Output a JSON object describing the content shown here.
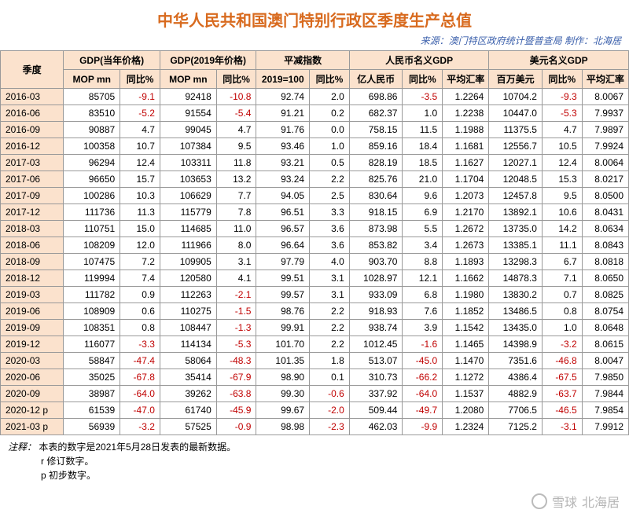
{
  "title": "中华人民共和国澳门特别行政区季度生产总值",
  "title_color": "#d86a1e",
  "subtitle": "来源：澳门特区政府统计暨普查局  制作：北海居",
  "subtitle_color": "#3a5fab",
  "watermark": {
    "brand": "雪球",
    "author": "北海居"
  },
  "header_bg": "#fbe2cd",
  "col_widths_pct": [
    9.5,
    8.5,
    6,
    8.5,
    6,
    8,
    6,
    8,
    6,
    7,
    8,
    6,
    7
  ],
  "colgroups": [
    {
      "label": "季度",
      "rowspan": 2
    },
    {
      "label": "GDP(当年价格)",
      "subs": [
        "MOP mn",
        "同比%"
      ]
    },
    {
      "label": "GDP(2019年价格)",
      "subs": [
        "MOP mn",
        "同比%"
      ]
    },
    {
      "label": "平减指数",
      "subs": [
        "2019=100",
        "同比%"
      ]
    },
    {
      "label": "人民币名义GDP",
      "subs": [
        "亿人民币",
        "同比%",
        "平均汇率"
      ]
    },
    {
      "label": "美元名义GDP",
      "subs": [
        "百万美元",
        "同比%",
        "平均汇率"
      ]
    }
  ],
  "rows": [
    {
      "period": "2016-03",
      "c": [
        85705,
        -9.1,
        92418,
        -10.8,
        "92.74",
        2.0,
        "698.86",
        -3.5,
        "1.2264",
        "10704.2",
        -9.3,
        "8.0067"
      ]
    },
    {
      "period": "2016-06",
      "c": [
        83510,
        -5.2,
        91554,
        -5.4,
        "91.21",
        0.2,
        "682.37",
        1.0,
        "1.2238",
        "10447.0",
        -5.3,
        "7.9937"
      ]
    },
    {
      "period": "2016-09",
      "c": [
        90887,
        4.7,
        99045,
        4.7,
        "91.76",
        0.0,
        "758.15",
        11.5,
        "1.1988",
        "11375.5",
        4.7,
        "7.9897"
      ]
    },
    {
      "period": "2016-12",
      "c": [
        100358,
        10.7,
        107384,
        9.5,
        "93.46",
        1.0,
        "859.16",
        18.4,
        "1.1681",
        "12556.7",
        10.5,
        "7.9924"
      ]
    },
    {
      "period": "2017-03",
      "c": [
        96294,
        12.4,
        103311,
        11.8,
        "93.21",
        0.5,
        "828.19",
        18.5,
        "1.1627",
        "12027.1",
        12.4,
        "8.0064"
      ]
    },
    {
      "period": "2017-06",
      "c": [
        96650,
        15.7,
        103653,
        13.2,
        "93.24",
        2.2,
        "825.76",
        21.0,
        "1.1704",
        "12048.5",
        15.3,
        "8.0217"
      ]
    },
    {
      "period": "2017-09",
      "c": [
        100286,
        10.3,
        106629,
        7.7,
        "94.05",
        2.5,
        "830.64",
        9.6,
        "1.2073",
        "12457.8",
        9.5,
        "8.0500"
      ]
    },
    {
      "period": "2017-12",
      "c": [
        111736,
        11.3,
        115779,
        7.8,
        "96.51",
        3.3,
        "918.15",
        6.9,
        "1.2170",
        "13892.1",
        10.6,
        "8.0431"
      ]
    },
    {
      "period": "2018-03",
      "c": [
        110751,
        15.0,
        114685,
        11.0,
        "96.57",
        3.6,
        "873.98",
        5.5,
        "1.2672",
        "13735.0",
        14.2,
        "8.0634"
      ]
    },
    {
      "period": "2018-06",
      "c": [
        108209,
        12.0,
        111966,
        8.0,
        "96.64",
        3.6,
        "853.82",
        3.4,
        "1.2673",
        "13385.1",
        11.1,
        "8.0843"
      ]
    },
    {
      "period": "2018-09",
      "c": [
        107475,
        7.2,
        109905,
        3.1,
        "97.79",
        4.0,
        "903.70",
        8.8,
        "1.1893",
        "13298.3",
        6.7,
        "8.0818"
      ]
    },
    {
      "period": "2018-12",
      "c": [
        119994,
        7.4,
        120580,
        4.1,
        "99.51",
        3.1,
        "1028.97",
        12.1,
        "1.1662",
        "14878.3",
        7.1,
        "8.0650"
      ]
    },
    {
      "period": "2019-03",
      "c": [
        111782,
        0.9,
        112263,
        -2.1,
        "99.57",
        3.1,
        "933.09",
        6.8,
        "1.1980",
        "13830.2",
        0.7,
        "8.0825"
      ]
    },
    {
      "period": "2019-06",
      "c": [
        108909,
        0.6,
        110275,
        -1.5,
        "98.76",
        2.2,
        "918.93",
        7.6,
        "1.1852",
        "13486.5",
        0.8,
        "8.0754"
      ]
    },
    {
      "period": "2019-09",
      "c": [
        108351,
        0.8,
        108447,
        -1.3,
        "99.91",
        2.2,
        "938.74",
        3.9,
        "1.1542",
        "13435.0",
        1.0,
        "8.0648"
      ]
    },
    {
      "period": "2019-12",
      "c": [
        116077,
        -3.3,
        114134,
        -5.3,
        "101.70",
        2.2,
        "1012.45",
        -1.6,
        "1.1465",
        "14398.9",
        -3.2,
        "8.0615"
      ]
    },
    {
      "period": "2020-03",
      "c": [
        58847,
        -47.4,
        58064,
        -48.3,
        "101.35",
        1.8,
        "513.07",
        -45.0,
        "1.1470",
        "7351.6",
        -46.8,
        "8.0047"
      ]
    },
    {
      "period": "2020-06",
      "c": [
        35025,
        -67.8,
        35414,
        -67.9,
        "98.90",
        0.1,
        "310.73",
        -66.2,
        "1.1272",
        "4386.4",
        -67.5,
        "7.9850"
      ]
    },
    {
      "period": "2020-09",
      "c": [
        38987,
        -64.0,
        39262,
        -63.8,
        "99.30",
        -0.6,
        "337.92",
        -64.0,
        "1.1537",
        "4882.9",
        -63.7,
        "7.9844"
      ]
    },
    {
      "period": "2020-12 p",
      "c": [
        61539,
        -47.0,
        61740,
        -45.9,
        "99.67",
        -2.0,
        "509.44",
        -49.7,
        "1.2080",
        "7706.5",
        -46.5,
        "7.9854"
      ]
    },
    {
      "period": "2021-03 p",
      "c": [
        56939,
        -3.2,
        57525,
        -0.9,
        "98.98",
        -2.3,
        "462.03",
        -9.9,
        "1.2324",
        "7125.2",
        -3.1,
        "7.9912"
      ]
    }
  ],
  "neg_cols_idx": [
    1,
    3,
    5,
    7,
    10
  ],
  "notes": {
    "label": "注释：",
    "lines": [
      "本表的数字是2021年5月28日发表的最新数据。",
      "r  修订数字。",
      "p  初步数字。"
    ]
  }
}
